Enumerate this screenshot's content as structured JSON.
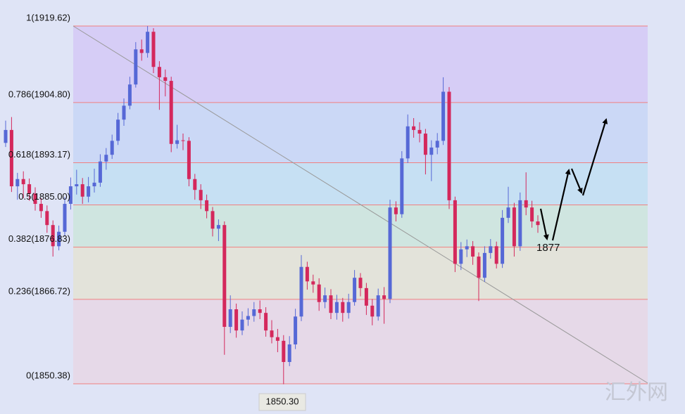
{
  "chart_data": {
    "type": "candlestick",
    "up_color": "#5668d6",
    "down_color": "#d4285c",
    "level_color": "#f08080",
    "band_colors": [
      "#e6d9e8",
      "#e3e3da",
      "#cfe5e0",
      "#c6e0f3",
      "#cbd8f6",
      "#d6cdf6"
    ],
    "ylim": [
      1849.16,
      1924.65
    ],
    "yticks": [
      {
        "value": 1850.38,
        "label": "0(1850.38)"
      },
      {
        "value": 1866.72,
        "label": "0.236(1866.72)"
      },
      {
        "value": 1876.83,
        "label": "0.382(1876.83)"
      },
      {
        "value": 1885.0,
        "label": "0.5(1885.00)"
      },
      {
        "value": 1893.17,
        "label": "0.618(1893.17)"
      },
      {
        "value": 1904.8,
        "label": "0.786(1904.80)"
      },
      {
        "value": 1919.62,
        "label": "1(1919.62)"
      }
    ],
    "categories": [
      null,
      null,
      null,
      null,
      null,
      null,
      null,
      null,
      null,
      null,
      null,
      null,
      null,
      null,
      null,
      null,
      null,
      null,
      null,
      null,
      null,
      null,
      null,
      null,
      null,
      null,
      null,
      null,
      null,
      null,
      null,
      null,
      null,
      null,
      null,
      null,
      null,
      null,
      null,
      null,
      null,
      null,
      null,
      null,
      null,
      null,
      null,
      null,
      null,
      null,
      null,
      null,
      null,
      null,
      null,
      null,
      null,
      null,
      null,
      null,
      null,
      null,
      null,
      null,
      null,
      null,
      null,
      null,
      null,
      null,
      null,
      null,
      null,
      null,
      null,
      null,
      null,
      null,
      null,
      null,
      null,
      null,
      null,
      null,
      null,
      null,
      null,
      null,
      null,
      null,
      null
    ],
    "open": [
      1897.0,
      1899.5,
      1888.6,
      1890.0,
      1889.0,
      1887.2,
      1885.2,
      1883.8,
      1881.1,
      1877.0,
      1879.8,
      1885.2,
      1888.6,
      1889.0,
      1886.6,
      1888.6,
      1889.3,
      1893.4,
      1894.7,
      1897.4,
      1901.5,
      1904.2,
      1908.3,
      1915.1,
      1914.4,
      1918.5,
      1911.7,
      1909.7,
      1909.0,
      1896.8,
      1897.5,
      1897.4,
      1890.0,
      1887.9,
      1885.9,
      1883.8,
      1880.4,
      1881.1,
      1861.4,
      1864.8,
      1860.7,
      1862.8,
      1863.5,
      1864.8,
      1864.1,
      1860.7,
      1859.4,
      1858.7,
      1854.6,
      1858.0,
      1863.4,
      1873.0,
      1870.2,
      1869.6,
      1866.2,
      1867.5,
      1864.1,
      1866.2,
      1864.1,
      1866.2,
      1870.9,
      1868.9,
      1865.5,
      1863.4,
      1867.5,
      1866.8,
      1884.5,
      1883.2,
      1894.0,
      1900.2,
      1899.5,
      1898.8,
      1894.7,
      1896.1,
      1897.4,
      1906.9,
      1885.9,
      1873.6,
      1876.4,
      1877.0,
      1875.0,
      1870.9,
      1875.7,
      1877.0,
      1873.6,
      1882.5,
      1884.5,
      1877.0,
      1885.9,
      1884.5,
      1881.8
    ],
    "high": [
      1901.3,
      1902.0,
      1891.2,
      1891.5,
      1890.1,
      1888.4,
      1886.3,
      1884.9,
      1882.0,
      1881.0,
      1886.5,
      1890.3,
      1891.8,
      1890.2,
      1890.4,
      1892.0,
      1894.8,
      1896.0,
      1898.6,
      1902.8,
      1905.6,
      1909.8,
      1916.5,
      1917.0,
      1919.62,
      1919.2,
      1912.8,
      1911.2,
      1909.8,
      1900.5,
      1898.8,
      1898.1,
      1891.0,
      1889.0,
      1887.0,
      1884.6,
      1882.2,
      1881.8,
      1867.5,
      1865.9,
      1864.4,
      1865.0,
      1866.2,
      1866.5,
      1865.2,
      1862.7,
      1861.0,
      1859.8,
      1859.6,
      1864.9,
      1875.3,
      1874.0,
      1871.5,
      1870.8,
      1869.0,
      1868.7,
      1867.6,
      1867.0,
      1867.8,
      1872.4,
      1871.8,
      1869.9,
      1866.8,
      1868.8,
      1869.1,
      1886.0,
      1885.7,
      1895.4,
      1902.5,
      1901.8,
      1901.0,
      1899.7,
      1897.5,
      1898.9,
      1909.7,
      1907.8,
      1886.6,
      1877.8,
      1878.3,
      1878.0,
      1875.8,
      1877.0,
      1878.4,
      1877.9,
      1884.0,
      1888.5,
      1885.4,
      1887.4,
      1891.3,
      1885.8,
      1883.0
    ],
    "low": [
      1896.2,
      1887.5,
      1886.0,
      1886.3,
      1885.8,
      1883.9,
      1882.5,
      1879.6,
      1875.0,
      1876.2,
      1879.0,
      1884.1,
      1887.0,
      1885.2,
      1885.5,
      1887.4,
      1888.5,
      1891.8,
      1893.9,
      1896.6,
      1900.3,
      1903.5,
      1907.7,
      1912.9,
      1913.5,
      1910.5,
      1903.4,
      1906.0,
      1895.2,
      1895.9,
      1895.6,
      1888.6,
      1886.0,
      1884.2,
      1882.4,
      1878.9,
      1878.0,
      1856.0,
      1860.2,
      1859.3,
      1859.8,
      1861.6,
      1862.4,
      1862.9,
      1859.5,
      1858.2,
      1856.5,
      1850.3,
      1853.8,
      1857.1,
      1862.5,
      1868.6,
      1868.0,
      1864.5,
      1865.0,
      1862.9,
      1862.8,
      1862.4,
      1863.0,
      1865.5,
      1867.3,
      1863.7,
      1861.7,
      1862.6,
      1862.0,
      1866.0,
      1881.8,
      1882.5,
      1893.1,
      1898.0,
      1897.1,
      1890.9,
      1889.6,
      1894.8,
      1896.6,
      1884.2,
      1872.0,
      1872.4,
      1874.9,
      1873.4,
      1866.4,
      1870.1,
      1874.6,
      1872.7,
      1872.8,
      1881.5,
      1875.0,
      1876.1,
      1883.0,
      1880.6,
      1879.6
    ],
    "close": [
      1899.5,
      1888.6,
      1890.0,
      1889.0,
      1887.2,
      1885.2,
      1883.8,
      1881.1,
      1877.0,
      1879.8,
      1885.2,
      1888.6,
      1889.0,
      1886.6,
      1888.6,
      1889.3,
      1893.4,
      1894.7,
      1897.4,
      1901.5,
      1904.2,
      1908.3,
      1915.1,
      1914.4,
      1918.5,
      1911.7,
      1909.7,
      1909.0,
      1896.8,
      1897.5,
      1897.4,
      1890.0,
      1887.9,
      1885.9,
      1883.8,
      1880.4,
      1881.1,
      1861.4,
      1864.8,
      1860.7,
      1862.8,
      1863.5,
      1864.8,
      1864.1,
      1860.7,
      1859.4,
      1858.7,
      1854.6,
      1858.0,
      1863.4,
      1873.0,
      1870.2,
      1869.6,
      1866.2,
      1867.5,
      1864.1,
      1866.2,
      1864.1,
      1866.2,
      1870.9,
      1868.9,
      1865.5,
      1863.4,
      1867.5,
      1866.8,
      1884.5,
      1883.2,
      1894.0,
      1900.2,
      1899.5,
      1898.8,
      1894.7,
      1896.1,
      1897.4,
      1906.9,
      1885.9,
      1873.6,
      1876.4,
      1877.0,
      1875.0,
      1870.9,
      1875.7,
      1877.0,
      1873.6,
      1882.5,
      1884.5,
      1877.0,
      1885.9,
      1884.5,
      1881.8,
      1881.1
    ],
    "low_label": "1850.30",
    "annotation": "1877",
    "watermark": "汇外网"
  }
}
